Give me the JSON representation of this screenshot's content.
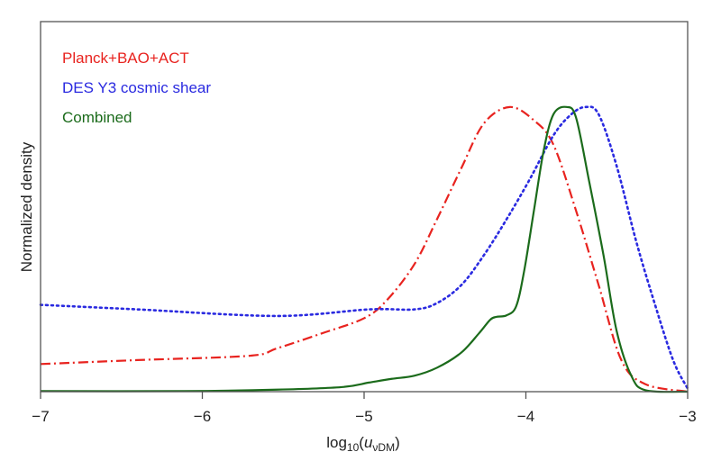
{
  "chart_data": {
    "type": "line",
    "title": "",
    "xlabel": "log10(u_vDM)",
    "xlabel_parts": {
      "main": "log",
      "sub1": "10",
      "open": "(",
      "var": "u",
      "sub2": "νDM",
      "close": ")"
    },
    "ylabel": "Normalized density",
    "xlim": [
      -7,
      -3
    ],
    "ylim": [
      0,
      1.3
    ],
    "xticks": [
      -7,
      -6,
      -5,
      -4,
      -3
    ],
    "xtick_labels": [
      "−7",
      "−6",
      "−5",
      "−4",
      "−3"
    ],
    "grid": false,
    "legend_position": "top-left",
    "series": [
      {
        "name": "Planck+BAO+ACT",
        "color": "#e8231f",
        "style": "dashdot",
        "x": [
          -7,
          -6.4,
          -5.71,
          -5.54,
          -5.26,
          -5.0,
          -4.86,
          -4.69,
          -4.55,
          -4.4,
          -4.26,
          -4.1,
          -3.95,
          -3.83,
          -3.69,
          -3.55,
          -3.41,
          -3.26,
          -3.0
        ],
        "y": [
          0.097,
          0.111,
          0.126,
          0.152,
          0.205,
          0.258,
          0.321,
          0.447,
          0.605,
          0.784,
          0.942,
          1.0,
          0.953,
          0.868,
          0.636,
          0.374,
          0.111,
          0.026,
          0.0
        ]
      },
      {
        "name": "DES Y3 cosmic shear",
        "color": "#2a2ae0",
        "style": "dotted",
        "x": [
          -7,
          -6.4,
          -5.54,
          -4.97,
          -4.69,
          -4.55,
          -4.4,
          -4.26,
          -4.12,
          -3.98,
          -3.83,
          -3.72,
          -3.63,
          -3.55,
          -3.44,
          -3.32,
          -3.21,
          -3.09,
          -3.0
        ],
        "y": [
          0.305,
          0.289,
          0.266,
          0.289,
          0.289,
          0.311,
          0.374,
          0.479,
          0.605,
          0.742,
          0.9,
          0.974,
          1.0,
          0.974,
          0.795,
          0.532,
          0.321,
          0.111,
          0.011
        ]
      },
      {
        "name": "Combined",
        "color": "#1b6b1b",
        "style": "solid",
        "x": [
          -7,
          -6.11,
          -5.54,
          -5.14,
          -4.97,
          -4.83,
          -4.69,
          -4.55,
          -4.4,
          -4.29,
          -4.22,
          -4.18,
          -4.12,
          -4.06,
          -4.01,
          -3.95,
          -3.89,
          -3.83,
          -3.75,
          -3.69,
          -3.61,
          -3.52,
          -3.44,
          -3.35,
          -3.26,
          -3.0
        ],
        "y": [
          0.002,
          0.002,
          0.007,
          0.016,
          0.032,
          0.045,
          0.056,
          0.084,
          0.137,
          0.205,
          0.253,
          0.263,
          0.268,
          0.3,
          0.426,
          0.637,
          0.847,
          0.974,
          1.0,
          0.963,
          0.742,
          0.479,
          0.216,
          0.058,
          0.005,
          0.0
        ]
      }
    ]
  }
}
